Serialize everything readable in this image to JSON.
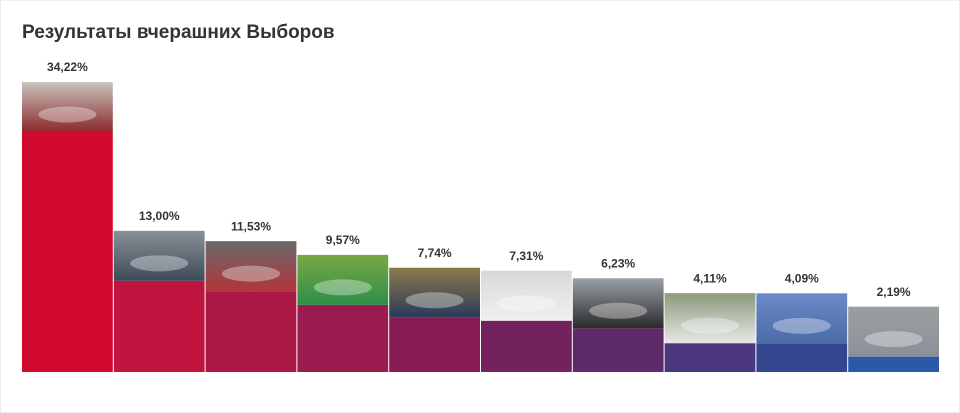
{
  "chart_data": {
    "type": "bar",
    "title": "Результаты вчерашних Выборов",
    "categories": [
      null,
      null,
      null,
      null,
      null,
      null,
      null,
      null,
      null,
      null
    ],
    "values": [
      34.22,
      13.0,
      11.53,
      9.57,
      7.74,
      7.31,
      6.23,
      4.11,
      4.09,
      2.19
    ],
    "value_labels": [
      "34,22%",
      "13,00%",
      "11,53%",
      "9,57%",
      "7,74%",
      "7,31%",
      "6,23%",
      "4,11%",
      "4,09%",
      "2,19%"
    ],
    "colors": [
      "#d20a32",
      "#c0153f",
      "#ac1846",
      "#9a1b4d",
      "#881d54",
      "#74225e",
      "#5f2a6a",
      "#4a377e",
      "#35468f",
      "#2a59a8"
    ]
  }
}
